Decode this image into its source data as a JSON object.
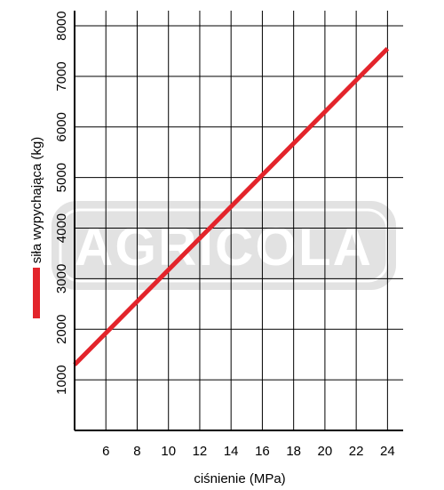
{
  "chart_data": {
    "type": "line",
    "xlabel": "ciśnienie (MPa)",
    "ylabel": "siła wypychająca (kg)",
    "x_ticks": [
      6,
      8,
      10,
      12,
      14,
      16,
      18,
      20,
      22,
      24
    ],
    "y_ticks": [
      1000,
      2000,
      3000,
      4000,
      5000,
      6000,
      7000,
      8000
    ],
    "xlim": [
      4,
      25
    ],
    "ylim": [
      0,
      8300
    ],
    "grid": true,
    "legend_position": "left",
    "series": [
      {
        "color": "#e3242b",
        "x": [
          4,
          24
        ],
        "y": [
          1300,
          7550
        ]
      }
    ],
    "watermark": "AGRICOLA"
  }
}
